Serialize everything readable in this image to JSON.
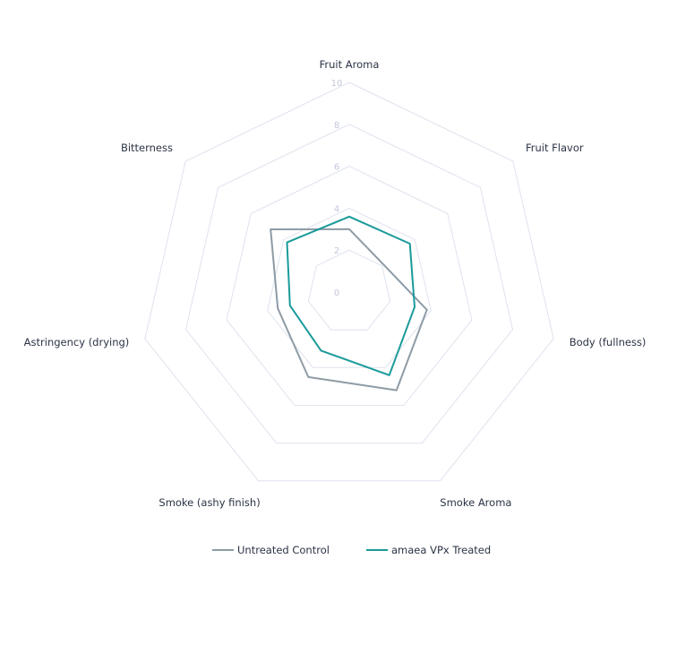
{
  "chart_data": {
    "type": "radar",
    "axes": [
      "Fruit Aroma",
      "Fruit Flavor",
      "Body (fullness)",
      "Smoke Aroma",
      "Smoke (ashy finish)",
      "Astringency (drying)",
      "Bitterness"
    ],
    "rlim": [
      0,
      10
    ],
    "ticks": [
      "0",
      "2",
      "4",
      "6",
      "8",
      "10"
    ],
    "tick_values": [
      0,
      2,
      4,
      6,
      8,
      10
    ],
    "series": [
      {
        "name": "Untreated Control",
        "color": "#8e9ba5",
        "values": [
          3.0,
          2.1,
          3.8,
          5.2,
          4.5,
          3.5,
          4.8
        ]
      },
      {
        "name": "amaea VPx Treated",
        "color": "#1a9a9a",
        "values": [
          3.6,
          3.7,
          3.2,
          4.4,
          3.1,
          2.9,
          3.8
        ]
      }
    ],
    "grid": true,
    "grid_color": "#dfe2ee",
    "legend_position": "bottom"
  }
}
